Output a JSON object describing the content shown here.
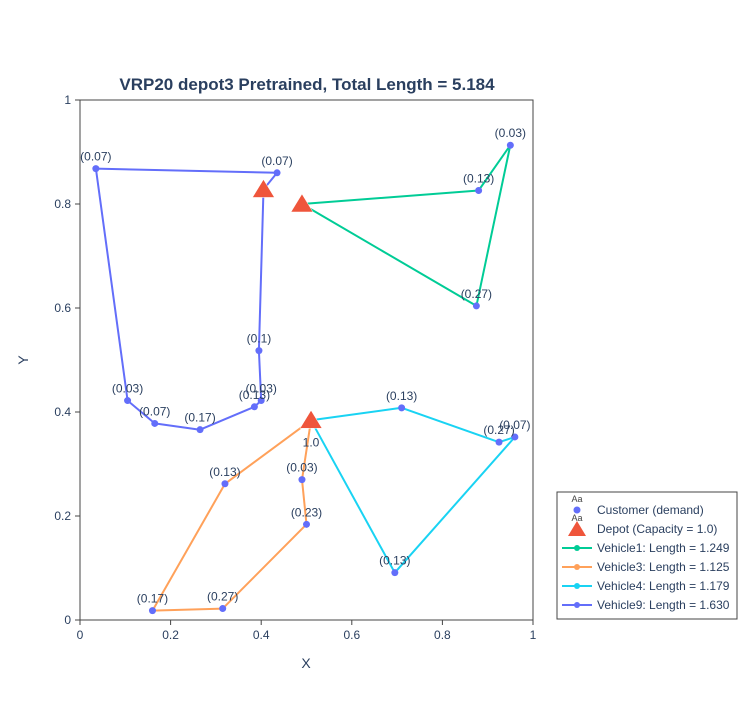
{
  "chart_data": {
    "type": "scatter",
    "title": "VRP20 depot3 Pretrained, Total Length = 5.184",
    "xlabel": "X",
    "ylabel": "Y",
    "xlim": [
      0,
      1
    ],
    "ylim": [
      0,
      1
    ],
    "xticks": [
      0,
      0.2,
      0.4,
      0.6,
      0.8,
      1
    ],
    "xtick_labels": [
      "0",
      "0.2",
      "0.4",
      "0.6",
      "0.8",
      "1"
    ],
    "yticks": [
      0,
      0.2,
      0.4,
      0.6,
      0.8,
      1
    ],
    "ytick_labels": [
      "0",
      "0.2",
      "0.4",
      "0.6",
      "0.8",
      "1"
    ],
    "grid": false,
    "legend_position": "bottom-right, outside plot",
    "colors": {
      "customer": "#636efa",
      "depot": "#ef553b",
      "title": "#2a3f5f",
      "axis": "#444444"
    },
    "customers": [
      {
        "x": 0.035,
        "y": 0.868,
        "demand": "(0.07)"
      },
      {
        "x": 0.435,
        "y": 0.86,
        "demand": "(0.07)"
      },
      {
        "x": 0.395,
        "y": 0.518,
        "demand": "(0.1)"
      },
      {
        "x": 0.105,
        "y": 0.422,
        "demand": "(0.03)"
      },
      {
        "x": 0.165,
        "y": 0.378,
        "demand": "(0.07)"
      },
      {
        "x": 0.265,
        "y": 0.366,
        "demand": "(0.17)"
      },
      {
        "x": 0.385,
        "y": 0.41,
        "demand": "(0.13)"
      },
      {
        "x": 0.4,
        "y": 0.422,
        "demand": "(0.03)"
      },
      {
        "x": 0.95,
        "y": 0.913,
        "demand": "(0.03)"
      },
      {
        "x": 0.88,
        "y": 0.826,
        "demand": "(0.13)"
      },
      {
        "x": 0.875,
        "y": 0.604,
        "demand": "(0.27)"
      },
      {
        "x": 0.71,
        "y": 0.408,
        "demand": "(0.13)"
      },
      {
        "x": 0.925,
        "y": 0.342,
        "demand": "(0.27)"
      },
      {
        "x": 0.96,
        "y": 0.352,
        "demand": "(0.07)"
      },
      {
        "x": 0.695,
        "y": 0.091,
        "demand": "(0.13)"
      },
      {
        "x": 0.49,
        "y": 0.27,
        "demand": "(0.03)"
      },
      {
        "x": 0.5,
        "y": 0.184,
        "demand": "(0.23)"
      },
      {
        "x": 0.32,
        "y": 0.262,
        "demand": "(0.13)"
      },
      {
        "x": 0.16,
        "y": 0.018,
        "demand": "(0.17)"
      },
      {
        "x": 0.315,
        "y": 0.022,
        "demand": "(0.27)"
      }
    ],
    "depots": [
      {
        "x": 0.405,
        "y": 0.828,
        "label": ""
      },
      {
        "x": 0.49,
        "y": 0.8,
        "label": ""
      },
      {
        "x": 0.51,
        "y": 0.384,
        "label": "1.0"
      }
    ],
    "series": [
      {
        "name": "Vehicle1: Length = 1.249",
        "color": "#00cc96",
        "x": [
          0.49,
          0.88,
          0.95,
          0.875,
          0.49
        ],
        "y": [
          0.8,
          0.826,
          0.913,
          0.604,
          0.8
        ]
      },
      {
        "name": "Vehicle3: Length = 1.125",
        "color": "#ffa15a",
        "x": [
          0.51,
          0.49,
          0.5,
          0.315,
          0.16,
          0.32,
          0.51
        ],
        "y": [
          0.384,
          0.27,
          0.184,
          0.022,
          0.018,
          0.262,
          0.384
        ]
      },
      {
        "name": "Vehicle4: Length = 1.179",
        "color": "#19d3f3",
        "x": [
          0.51,
          0.71,
          0.925,
          0.96,
          0.695,
          0.51
        ],
        "y": [
          0.384,
          0.408,
          0.342,
          0.352,
          0.091,
          0.384
        ]
      },
      {
        "name": "Vehicle9: Length = 1.630",
        "color": "#636efa",
        "x": [
          0.405,
          0.435,
          0.035,
          0.105,
          0.165,
          0.265,
          0.385,
          0.4,
          0.395,
          0.405
        ],
        "y": [
          0.828,
          0.86,
          0.868,
          0.422,
          0.378,
          0.366,
          0.41,
          0.422,
          0.518,
          0.828
        ]
      }
    ],
    "legend": {
      "customer_label": "Customer (demand)",
      "depot_label": "Depot (Capacity = 1.0)",
      "marker_text": "Aa"
    }
  }
}
